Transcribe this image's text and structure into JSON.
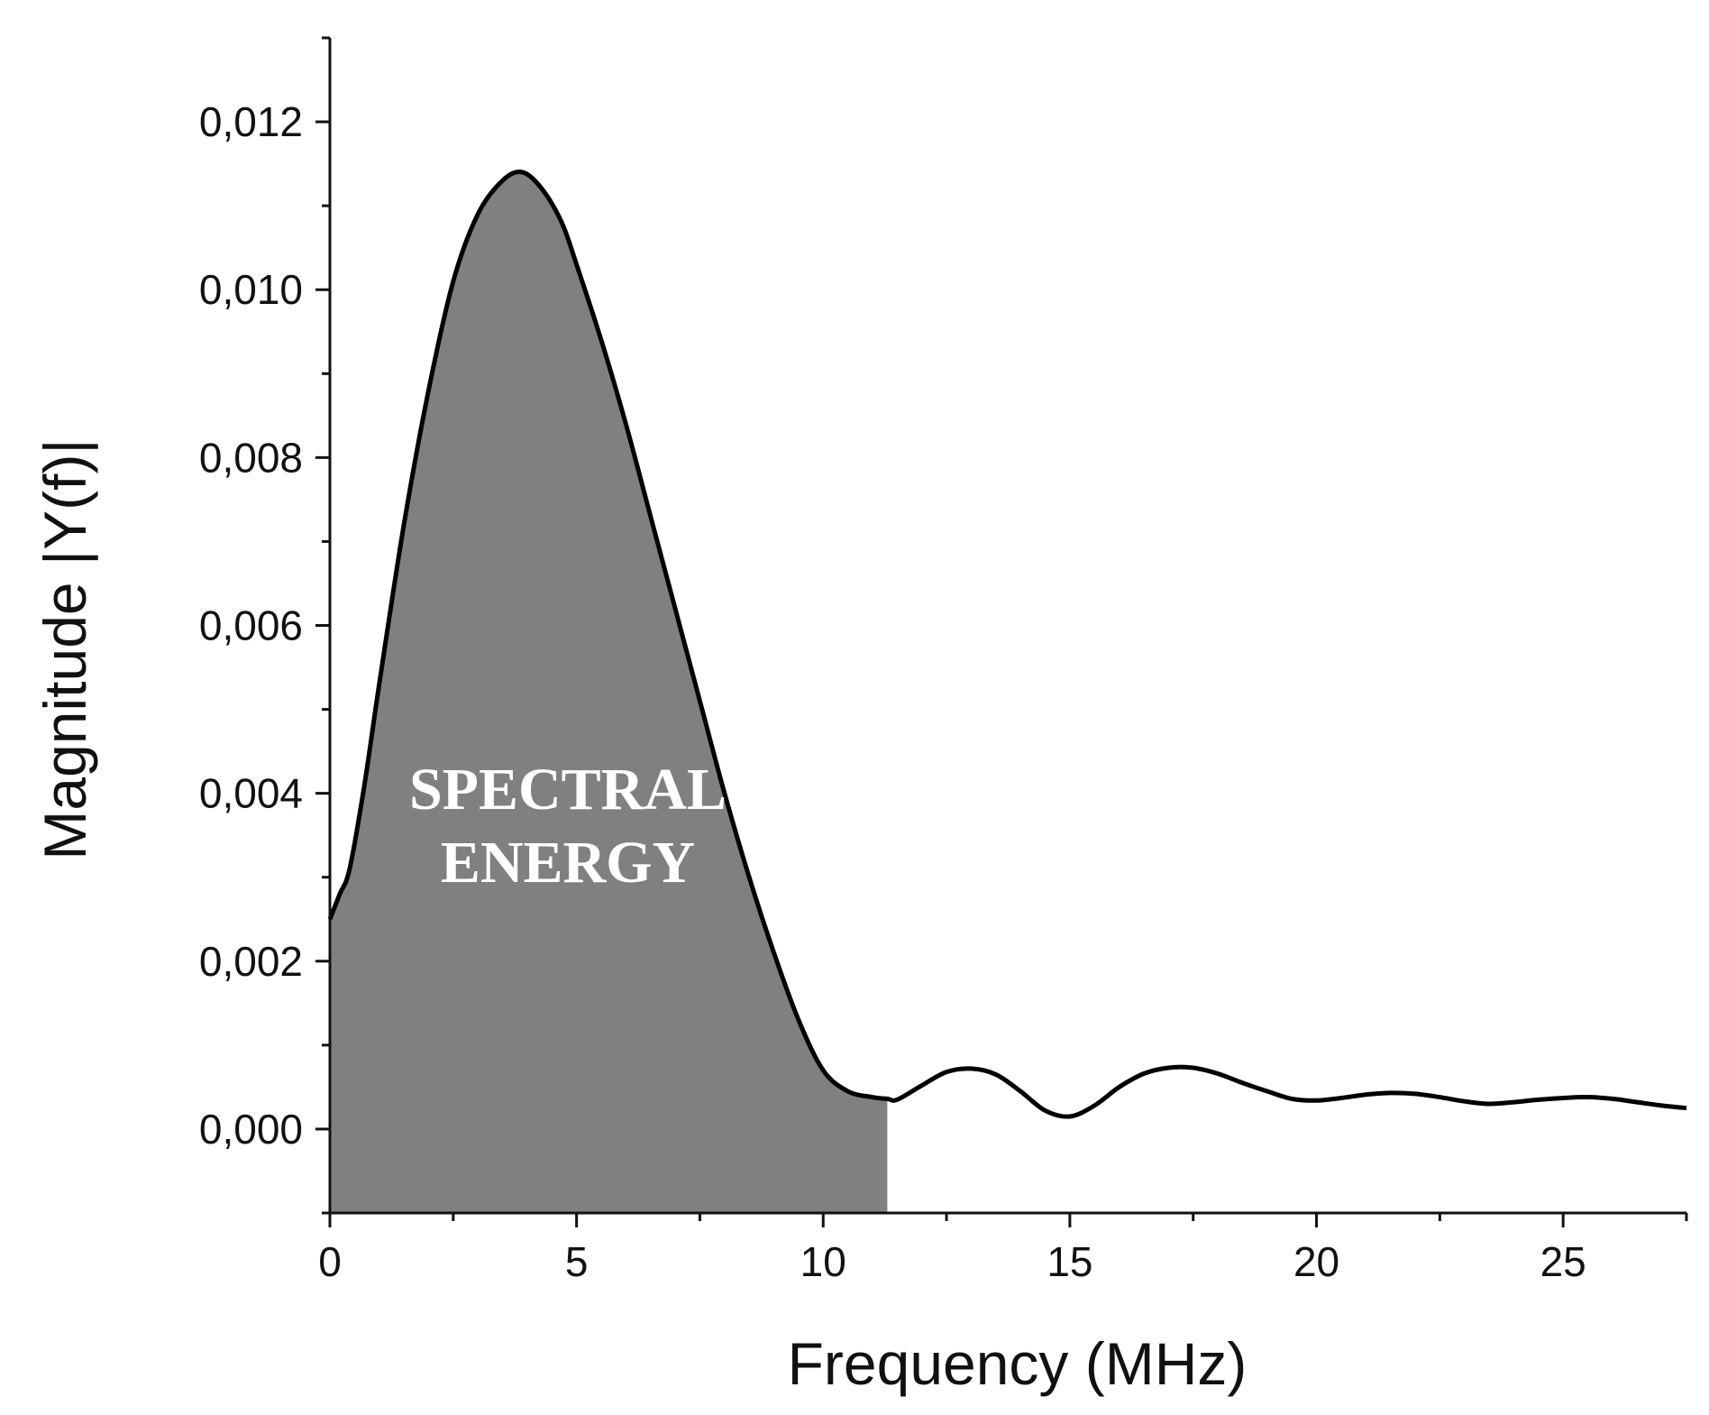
{
  "chart_data": {
    "type": "line",
    "title": "",
    "xlabel": "Frequency (MHz)",
    "ylabel": "Magnitude |Y(f)|",
    "xlim": [
      0,
      27.5
    ],
    "ylim": [
      -0.001,
      0.013
    ],
    "grid": false,
    "legend": "none",
    "x_ticks": [
      {
        "value": 0,
        "label": "0"
      },
      {
        "value": 5,
        "label": "5"
      },
      {
        "value": 10,
        "label": "10"
      },
      {
        "value": 15,
        "label": "15"
      },
      {
        "value": 20,
        "label": "20"
      },
      {
        "value": 25,
        "label": "25"
      }
    ],
    "y_ticks": [
      {
        "value": 0.0,
        "label": "0,000"
      },
      {
        "value": 0.002,
        "label": "0,002"
      },
      {
        "value": 0.004,
        "label": "0,004"
      },
      {
        "value": 0.006,
        "label": "0,006"
      },
      {
        "value": 0.008,
        "label": "0,008"
      },
      {
        "value": 0.01,
        "label": "0,010"
      },
      {
        "value": 0.012,
        "label": "0,012"
      }
    ],
    "series": [
      {
        "x": [
          0,
          0.2,
          0.4,
          0.7,
          1.0,
          1.5,
          2.0,
          2.5,
          3.0,
          3.5,
          3.9,
          4.3,
          4.7,
          5.0,
          5.5,
          6.0,
          6.5,
          7.0,
          7.5,
          8.0,
          8.5,
          9.0,
          9.5,
          10.0,
          10.5,
          11.0,
          11.3,
          11.5,
          12.0,
          12.5,
          13.0,
          13.5,
          14.0,
          14.5,
          15.0,
          15.5,
          16.0,
          16.5,
          17.0,
          17.5,
          18.0,
          18.5,
          19.0,
          19.5,
          20.0,
          20.5,
          21.0,
          21.5,
          22.0,
          22.5,
          23.0,
          23.5,
          24.0,
          24.5,
          25.0,
          25.5,
          26.0,
          26.5,
          27.0,
          27.5
        ],
        "y": [
          0.0025,
          0.0028,
          0.0031,
          0.0041,
          0.0053,
          0.0072,
          0.0088,
          0.0101,
          0.0109,
          0.0113,
          0.0114,
          0.0112,
          0.0108,
          0.0103,
          0.0094,
          0.0084,
          0.0073,
          0.0062,
          0.0051,
          0.004,
          0.003,
          0.0021,
          0.0013,
          0.0007,
          0.00045,
          0.00038,
          0.00036,
          0.00035,
          0.00052,
          0.00068,
          0.00072,
          0.00065,
          0.00045,
          0.00022,
          0.00015,
          0.00028,
          0.0005,
          0.00066,
          0.00073,
          0.00073,
          0.00066,
          0.00055,
          0.00045,
          0.00036,
          0.00034,
          0.00037,
          0.00041,
          0.00043,
          0.00042,
          0.00038,
          0.00033,
          0.0003,
          0.00032,
          0.00035,
          0.00037,
          0.00038,
          0.00036,
          0.00032,
          0.00028,
          0.00025
        ]
      }
    ],
    "shaded_region": {
      "x_start": 0,
      "x_end": 11.3,
      "label_lines": [
        "SPECTRAL",
        "ENERGY"
      ],
      "fill_color": "#808080",
      "label_color": "#ffffff"
    },
    "line_color": "#000000"
  }
}
